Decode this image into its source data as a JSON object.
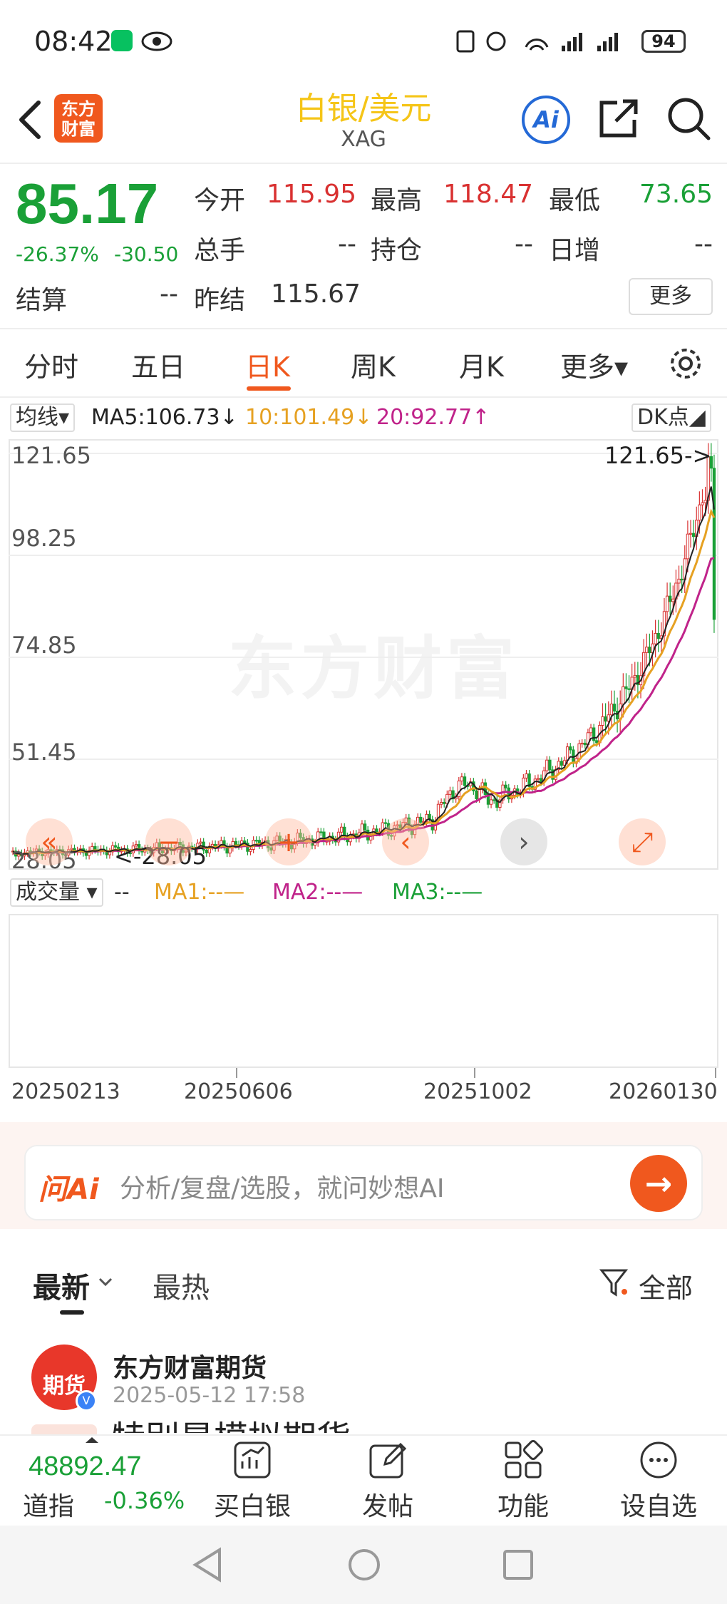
{
  "status": {
    "time": "08:42",
    "battery": "94"
  },
  "header": {
    "logo": "东方\n财富",
    "title": "白银/美元",
    "subtitle": "XAG",
    "ai": "Ai"
  },
  "quote": {
    "price": "85.17",
    "change_pct": "-26.37%",
    "change_abs": "-30.50",
    "fields": {
      "open_label": "今开",
      "open": "115.95",
      "high_label": "最高",
      "high": "118.47",
      "low_label": "最低",
      "low": "73.65",
      "volume_label": "总手",
      "volume": "--",
      "oi_label": "持仓",
      "oi": "--",
      "daily_inc_label": "日增",
      "daily_inc": "--",
      "settle_label": "结算",
      "settle": "--",
      "prev_settle_label": "昨结",
      "prev_settle": "115.67"
    },
    "more": "更多"
  },
  "tabs": [
    "分时",
    "五日",
    "日K",
    "周K",
    "月K",
    "更多▾"
  ],
  "ma": {
    "selector": "均线▾",
    "ma5": "MA5:106.73↓",
    "ma10": "10:101.49↓",
    "ma20": "20:92.77↑",
    "dk": "DK点◢"
  },
  "chart": {
    "y_labels": [
      "121.65",
      "98.25",
      "74.85",
      "51.45",
      "28.05"
    ],
    "max_marker": "121.65->",
    "min_marker": "<-28.05",
    "watermark": "东方财富",
    "controls": [
      "«",
      "−",
      "+",
      "‹",
      "›",
      "⤢"
    ]
  },
  "volume": {
    "selector": "成交量 ▾",
    "dash": "--",
    "ma1": "MA1:--—",
    "ma2": "MA2:--—",
    "ma3": "MA3:--—"
  },
  "dates": [
    "20250213",
    "20250606",
    "20251002",
    "20260130"
  ],
  "ai_bar": {
    "brand": "问Ai",
    "placeholder": "分析/复盘/选股，就问妙想AI",
    "send": "→"
  },
  "feed": {
    "tabs": [
      "最新",
      "最热"
    ],
    "filter": "全部",
    "post": {
      "avatar": "期货",
      "author": "东方财富期货",
      "time": "2025-05-12 17:58",
      "text_peek": "特别是模拟期货"
    }
  },
  "bottom": {
    "index_value": "48892.47",
    "index_name": "道指",
    "index_change": "-0.36%",
    "nav": [
      "买白银",
      "发帖",
      "功能",
      "设自选"
    ]
  },
  "colors": {
    "accent": "#f0581e",
    "up": "#d93131",
    "down": "#1aa037",
    "ma5": "#222222",
    "ma10": "#e6a122",
    "ma20": "#c0238a"
  }
}
